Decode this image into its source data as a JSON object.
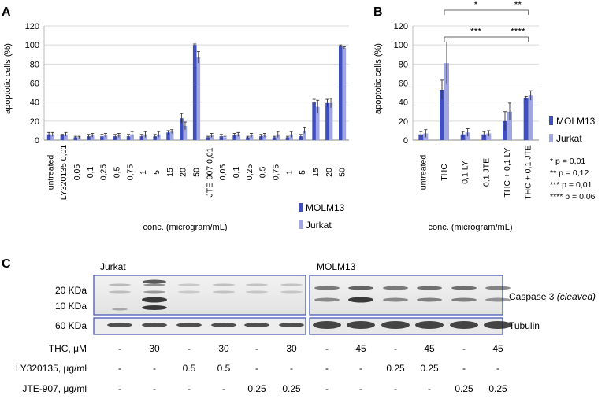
{
  "panels": {
    "a": "A",
    "b": "B",
    "c": "C"
  },
  "colors": {
    "molm13": "#3f4fc0",
    "jurkat": "#9fa6e3",
    "blot_border": "#4a5ab5"
  },
  "chart_data": [
    {
      "type": "bar",
      "panel": "A",
      "ylabel": "apoptotic cells (%)",
      "xlabel": "conc. (microgram/mL)",
      "ylim": [
        0,
        120
      ],
      "yticks": [
        0,
        20,
        40,
        60,
        80,
        100,
        120
      ],
      "categories": [
        "untreated",
        "LY320135 0,01",
        "0,05",
        "0,1",
        "0,25",
        "0,5",
        "0,75",
        "1",
        "5",
        "15",
        "20",
        "50",
        "JTE-907 0,01",
        "0,05",
        "0,1",
        "0,25",
        "0,5",
        "0,75",
        "1",
        "5",
        "15",
        "20",
        "50"
      ],
      "series": [
        {
          "name": "MOLM13",
          "values": [
            6,
            5,
            3,
            4,
            4,
            4,
            4,
            4,
            4,
            8,
            23,
            100,
            3,
            4,
            5,
            3,
            4,
            3,
            3,
            4,
            40,
            39,
            99
          ],
          "errors": [
            2,
            1,
            1,
            2,
            2,
            2,
            2,
            2,
            2,
            2,
            5,
            1,
            1,
            2,
            2,
            1,
            2,
            1,
            1,
            2,
            3,
            4,
            1
          ]
        },
        {
          "name": "Jurkat",
          "values": [
            6,
            6,
            3,
            5,
            5,
            5,
            6,
            6,
            6,
            9,
            15,
            87,
            5,
            3,
            6,
            5,
            5,
            6,
            6,
            10,
            35,
            39,
            97
          ],
          "errors": [
            2,
            2,
            1,
            2,
            2,
            2,
            3,
            3,
            3,
            2,
            4,
            6,
            2,
            1,
            2,
            2,
            2,
            3,
            3,
            3,
            7,
            5,
            1
          ]
        }
      ],
      "legend_position": "bottom-right"
    },
    {
      "type": "bar",
      "panel": "B",
      "ylabel": "apoptotic cells (%)",
      "xlabel": "conc. (microgram/mL)",
      "ylim": [
        0,
        120
      ],
      "yticks": [
        0,
        20,
        40,
        60,
        80,
        100,
        120
      ],
      "categories": [
        "untreated",
        "THC",
        "0,1 LY",
        "0,1 JTE",
        "THC + 0,1 LY",
        "THC + 0,1 JTE"
      ],
      "series": [
        {
          "name": "MOLM13",
          "values": [
            6,
            53,
            6,
            6,
            20,
            44
          ],
          "errors": [
            3,
            10,
            3,
            3,
            10,
            2
          ]
        },
        {
          "name": "Jurkat",
          "values": [
            7,
            81,
            8,
            7,
            30,
            47
          ],
          "errors": [
            4,
            22,
            4,
            3,
            9,
            5
          ]
        }
      ],
      "significance": [
        {
          "label": "*",
          "from": 1,
          "to": 4
        },
        {
          "label": "**",
          "from": 4,
          "to": 5
        },
        {
          "label": "***",
          "from": 1,
          "to": 4
        },
        {
          "label": "****",
          "from": 4,
          "to": 5
        }
      ],
      "pvalues": [
        "* p = 0,01",
        "** p = 0,12",
        "*** p = 0,01",
        "**** p = 0,06"
      ],
      "legend_position": "right"
    }
  ],
  "blot": {
    "cell_lines": [
      "Jurkat",
      "MOLM13"
    ],
    "markers": [
      "20 KDa",
      "10 KDa",
      "60 KDa"
    ],
    "band_labels": {
      "caspase_main": "Caspase 3 ",
      "caspase_note": "(cleaved)",
      "tubulin": "Tubulin"
    },
    "treatments": [
      {
        "label": "THC, μM",
        "values": [
          "-",
          "30",
          "-",
          "30",
          "-",
          "30",
          "-",
          "45",
          "-",
          "45",
          "-",
          "45"
        ]
      },
      {
        "label": "LY320135, μg/ml",
        "values": [
          "-",
          "-",
          "0.5",
          "0.5",
          "-",
          "-",
          "-",
          "-",
          "0.25",
          "0.25",
          "-",
          "-"
        ]
      },
      {
        "label": "JTE-907, μg/ml",
        "values": [
          "-",
          "-",
          "-",
          "-",
          "0.25",
          "0.25",
          "-",
          "-",
          "-",
          "-",
          "0.25",
          "0.25"
        ]
      }
    ]
  }
}
